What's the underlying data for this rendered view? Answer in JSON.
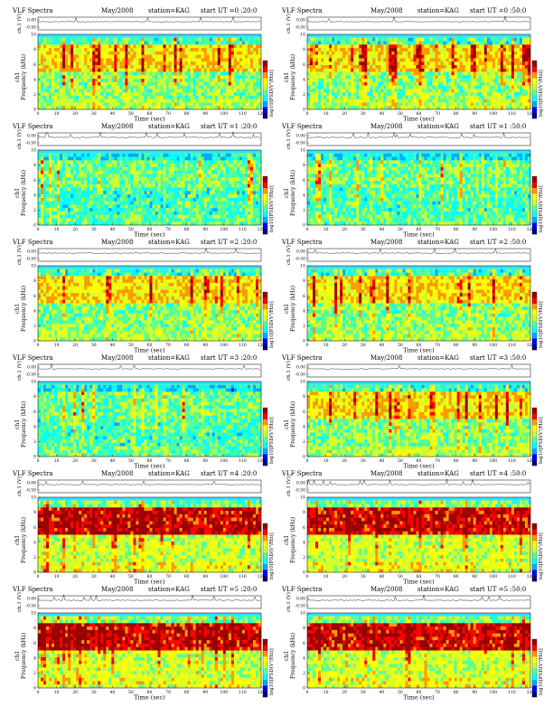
{
  "labels": {
    "title": "VLF Spectra",
    "date": "May/2008",
    "station": "station=KAG",
    "wave_axis": "ch.1 (V)",
    "freq_axis": "Frequency (kHz)",
    "freq_axis_prefix": "ch1",
    "time_axis": "Time  (sec)",
    "colorbar_label": "log10[PSD(V²/Hz)]"
  },
  "colors": {
    "spectrogram_scale": [
      "#000080",
      "#0000ff",
      "#00aaff",
      "#00ffff",
      "#55ff99",
      "#ccff33",
      "#ffff00",
      "#ff9900",
      "#ff0000",
      "#990000"
    ],
    "wave_line": "#000000"
  },
  "chart_data": [
    {
      "type": "heatmap",
      "start_label": "start  UT =0 :20:0",
      "band": "medium",
      "xlim": [
        0,
        120
      ],
      "ylim": [
        0,
        10
      ],
      "x_ticks": [
        "0",
        "10",
        "20",
        "30",
        "40",
        "50",
        "60",
        "70",
        "80",
        "90",
        "100",
        "110",
        "120"
      ],
      "y_ticks": [
        "0",
        "2",
        "4",
        "6",
        "8",
        "10"
      ],
      "wave_ticks": [
        "0.00",
        "-0.50"
      ]
    },
    {
      "type": "heatmap",
      "start_label": "start  UT =0 :50:0",
      "band": "medium",
      "xlim": [
        0,
        120
      ],
      "ylim": [
        0,
        10
      ],
      "x_ticks": [
        "0",
        "10",
        "20",
        "30",
        "40",
        "50",
        "60",
        "70",
        "80",
        "90",
        "100",
        "110",
        "120"
      ],
      "y_ticks": [
        "0",
        "2",
        "4",
        "6",
        "8",
        "10"
      ],
      "wave_ticks": [
        "0.00",
        "-0.50"
      ]
    },
    {
      "type": "heatmap",
      "start_label": "start  UT =1 :20:0",
      "band": "low",
      "xlim": [
        0,
        120
      ],
      "ylim": [
        0,
        10
      ],
      "x_ticks": [
        "0",
        "10",
        "20",
        "30",
        "40",
        "50",
        "60",
        "70",
        "80",
        "90",
        "100",
        "110",
        "120"
      ],
      "y_ticks": [
        "0",
        "2",
        "4",
        "6",
        "8",
        "10"
      ],
      "wave_ticks": [
        "0.00",
        "-0.50"
      ]
    },
    {
      "type": "heatmap",
      "start_label": "start  UT =1 :50:0",
      "band": "low",
      "xlim": [
        0,
        120
      ],
      "ylim": [
        0,
        10
      ],
      "x_ticks": [
        "0",
        "10",
        "20",
        "30",
        "40",
        "50",
        "60",
        "70",
        "80",
        "90",
        "100",
        "110",
        "120"
      ],
      "y_ticks": [
        "0",
        "2",
        "4",
        "6",
        "8",
        "10"
      ],
      "wave_ticks": [
        "0.00",
        "-0.50"
      ]
    },
    {
      "type": "heatmap",
      "start_label": "start  UT =2 :20:0",
      "band": "medium",
      "xlim": [
        0,
        120
      ],
      "ylim": [
        0,
        10
      ],
      "x_ticks": [
        "0",
        "10",
        "20",
        "30",
        "40",
        "50",
        "60",
        "70",
        "80",
        "90",
        "100",
        "110",
        "120"
      ],
      "y_ticks": [
        "0",
        "2",
        "4",
        "6",
        "8",
        "10"
      ],
      "wave_ticks": [
        "0.00",
        "-0.50"
      ]
    },
    {
      "type": "heatmap",
      "start_label": "start  UT =2 :50:0",
      "band": "medium",
      "xlim": [
        0,
        120
      ],
      "ylim": [
        0,
        10
      ],
      "x_ticks": [
        "0",
        "10",
        "20",
        "30",
        "40",
        "50",
        "60",
        "70",
        "80",
        "90",
        "100",
        "110",
        "120"
      ],
      "y_ticks": [
        "0",
        "2",
        "4",
        "6",
        "8",
        "10"
      ],
      "wave_ticks": [
        "0.00",
        "-0.50"
      ]
    },
    {
      "type": "heatmap",
      "start_label": "start  UT =3 :20:0",
      "band": "low",
      "xlim": [
        0,
        120
      ],
      "ylim": [
        0,
        10
      ],
      "x_ticks": [
        "0",
        "10",
        "20",
        "30",
        "40",
        "50",
        "60",
        "70",
        "80",
        "90",
        "100",
        "110",
        "120"
      ],
      "y_ticks": [
        "0",
        "2",
        "4",
        "6",
        "8",
        "10"
      ],
      "wave_ticks": [
        "0.00",
        "-0.50"
      ]
    },
    {
      "type": "heatmap",
      "start_label": "start  UT =3 :50:0",
      "band": "medium",
      "xlim": [
        0,
        120
      ],
      "ylim": [
        0,
        10
      ],
      "x_ticks": [
        "0",
        "10",
        "20",
        "30",
        "40",
        "50",
        "60",
        "70",
        "80",
        "90",
        "100",
        "110",
        "120"
      ],
      "y_ticks": [
        "0",
        "2",
        "4",
        "6",
        "8",
        "10"
      ],
      "wave_ticks": [
        "0.00",
        "-0.50"
      ]
    },
    {
      "type": "heatmap",
      "start_label": "start  UT =4 :20:0",
      "band": "high",
      "xlim": [
        0,
        120
      ],
      "ylim": [
        0,
        10
      ],
      "x_ticks": [
        "0",
        "10",
        "20",
        "30",
        "40",
        "50",
        "60",
        "70",
        "80",
        "90",
        "100",
        "110",
        "120"
      ],
      "y_ticks": [
        "0",
        "2",
        "4",
        "6",
        "8",
        "10"
      ],
      "wave_ticks": [
        "0.00",
        "-0.50"
      ]
    },
    {
      "type": "heatmap",
      "start_label": "start  UT =4 :50:0",
      "band": "high",
      "xlim": [
        0,
        120
      ],
      "ylim": [
        0,
        10
      ],
      "x_ticks": [
        "0",
        "10",
        "20",
        "30",
        "40",
        "50",
        "60",
        "70",
        "80",
        "90",
        "100",
        "110",
        "120"
      ],
      "y_ticks": [
        "0",
        "2",
        "4",
        "6",
        "8",
        "10"
      ],
      "wave_ticks": [
        "0.00",
        "-0.50"
      ]
    },
    {
      "type": "heatmap",
      "start_label": "start  UT =5 :20:0",
      "band": "high",
      "xlim": [
        0,
        120
      ],
      "ylim": [
        0,
        10
      ],
      "x_ticks": [
        "0",
        "10",
        "20",
        "30",
        "40",
        "50",
        "60",
        "70",
        "80",
        "90",
        "100",
        "110",
        "120"
      ],
      "y_ticks": [
        "0",
        "2",
        "4",
        "6",
        "8",
        "10"
      ],
      "wave_ticks": [
        "0.00",
        "-0.50"
      ]
    },
    {
      "type": "heatmap",
      "start_label": "start  UT =5 :50:0",
      "band": "high",
      "xlim": [
        0,
        120
      ],
      "ylim": [
        0,
        10
      ],
      "x_ticks": [
        "0",
        "10",
        "20",
        "30",
        "40",
        "50",
        "60",
        "70",
        "80",
        "90",
        "100",
        "110",
        "120"
      ],
      "y_ticks": [
        "0",
        "2",
        "4",
        "6",
        "8",
        "10"
      ],
      "wave_ticks": [
        "0.00",
        "-0.50"
      ]
    }
  ]
}
